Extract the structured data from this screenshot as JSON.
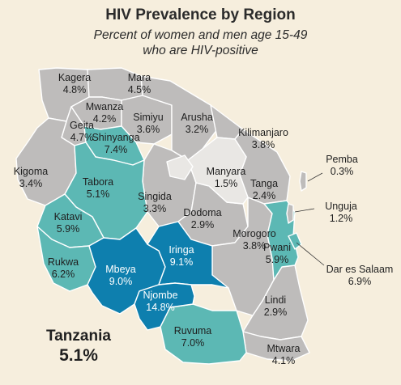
{
  "title": "HIV Prevalence by Region",
  "subtitle_line1": "Percent of women and men age 15-49",
  "subtitle_line2": "who are HIV-positive",
  "country": {
    "name": "Tanzania",
    "value": "5.1%"
  },
  "colors": {
    "background": "#f6eedd",
    "low": "#bebcbb",
    "lowest": "#e9e7e4",
    "mid": "#5cb8b4",
    "high": "#0e7fae"
  },
  "regions": {
    "kagera": {
      "name": "Kagera",
      "value": "4.8%"
    },
    "mara": {
      "name": "Mara",
      "value": "4.5%"
    },
    "mwanza": {
      "name": "Mwanza",
      "value": "4.2%"
    },
    "geita": {
      "name": "Geita",
      "value": "4.7%"
    },
    "simiyu": {
      "name": "Simiyu",
      "value": "3.6%"
    },
    "arusha": {
      "name": "Arusha",
      "value": "3.2%"
    },
    "kilimanjaro": {
      "name": "Kilimanjaro",
      "value": "3.8%"
    },
    "shinyanga": {
      "name": "Shinyanga",
      "value": "7.4%"
    },
    "pemba": {
      "name": "Pemba",
      "value": "0.3%"
    },
    "kigoma": {
      "name": "Kigoma",
      "value": "3.4%"
    },
    "tabora": {
      "name": "Tabora",
      "value": "5.1%"
    },
    "manyara": {
      "name": "Manyara",
      "value": "1.5%"
    },
    "tanga": {
      "name": "Tanga",
      "value": "2.4%"
    },
    "unguja": {
      "name": "Unguja",
      "value": "1.2%"
    },
    "singida": {
      "name": "Singida",
      "value": "3.3%"
    },
    "dodoma": {
      "name": "Dodoma",
      "value": "2.9%"
    },
    "katavi": {
      "name": "Katavi",
      "value": "5.9%"
    },
    "morogoro": {
      "name": "Morogoro",
      "value": "3.8%"
    },
    "pwani": {
      "name": "Pwani",
      "value": "5.9%"
    },
    "dar": {
      "name": "Dar es Salaam",
      "value": "6.9%"
    },
    "iringa": {
      "name": "Iringa",
      "value": "9.1%"
    },
    "rukwa": {
      "name": "Rukwa",
      "value": "6.2%"
    },
    "mbeya": {
      "name": "Mbeya",
      "value": "9.0%"
    },
    "njombe": {
      "name": "Njombe",
      "value": "14.8%"
    },
    "lindi": {
      "name": "Lindi",
      "value": "2.9%"
    },
    "ruvuma": {
      "name": "Ruvuma",
      "value": "7.0%"
    },
    "mtwara": {
      "name": "Mtwara",
      "value": "4.1%"
    }
  }
}
